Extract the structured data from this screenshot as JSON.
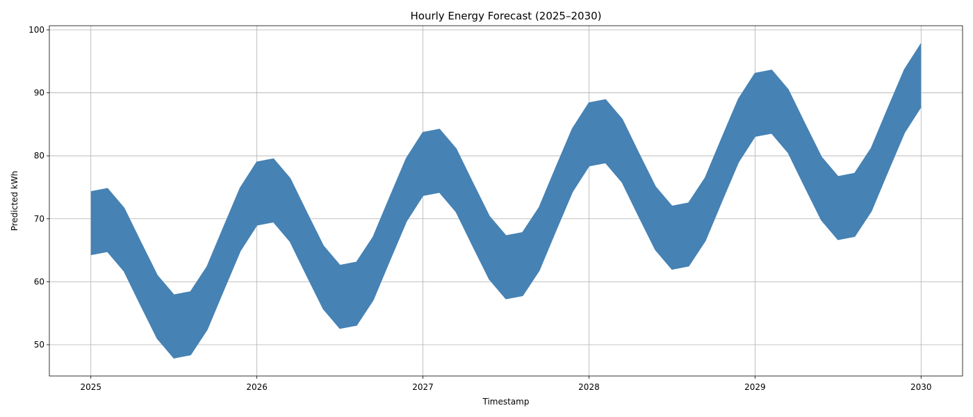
{
  "chart_data": {
    "type": "band",
    "title": "Hourly Energy Forecast (2025–2030)",
    "x_label": "Timestamp",
    "y_label": "Predicted kWh",
    "color": "#4682b4",
    "grid": true,
    "x": [
      2025,
      2025.1,
      2025.2,
      2025.3,
      2025.4,
      2025.5,
      2025.6,
      2025.7,
      2025.8,
      2025.9,
      2026,
      2026.1,
      2026.2,
      2026.3,
      2026.4,
      2026.5,
      2026.6,
      2026.7,
      2026.8,
      2026.9,
      2027,
      2027.1,
      2027.2,
      2027.3,
      2027.4,
      2027.5,
      2027.6,
      2027.7,
      2027.8,
      2027.9,
      2028,
      2028.1,
      2028.2,
      2028.3,
      2028.4,
      2028.5,
      2028.6,
      2028.7,
      2028.8,
      2028.9,
      2029,
      2029.1,
      2029.2,
      2029.3,
      2029.4,
      2029.5,
      2029.6,
      2029.7,
      2029.8,
      2029.9,
      2030
    ],
    "y_upper": [
      74.3,
      74.8,
      71.7,
      66.3,
      61.0,
      57.9,
      58.4,
      62.4,
      68.7,
      74.9,
      79.0,
      79.5,
      76.4,
      71.0,
      65.7,
      62.6,
      63.1,
      67.1,
      73.4,
      79.6,
      83.7,
      84.2,
      81.1,
      75.7,
      70.4,
      67.3,
      67.8,
      71.8,
      78.1,
      84.3,
      88.4,
      88.9,
      85.8,
      80.4,
      75.1,
      72.0,
      72.5,
      76.5,
      82.8,
      89.0,
      93.1,
      93.6,
      90.5,
      85.1,
      79.8,
      76.7,
      77.2,
      81.2,
      87.5,
      93.7,
      97.8
    ],
    "y_lower": [
      64.3,
      64.8,
      61.7,
      56.3,
      51.0,
      47.9,
      48.4,
      52.4,
      58.7,
      64.9,
      69.0,
      69.5,
      66.4,
      61.0,
      55.7,
      52.6,
      53.1,
      57.1,
      63.4,
      69.6,
      73.7,
      74.2,
      71.1,
      65.7,
      60.4,
      57.3,
      57.8,
      61.8,
      68.1,
      74.3,
      78.4,
      78.9,
      75.8,
      70.4,
      65.1,
      62.0,
      62.5,
      66.5,
      72.8,
      79.0,
      83.1,
      83.6,
      80.5,
      75.1,
      69.8,
      66.7,
      67.2,
      71.2,
      77.5,
      83.7,
      87.8
    ],
    "xlim": [
      2024.75,
      2030.25
    ],
    "xticks": [
      2025,
      2026,
      2027,
      2028,
      2029,
      2030
    ],
    "ylim": [
      45.03,
      100.66
    ],
    "yticks": [
      50,
      60,
      70,
      80,
      90,
      100
    ]
  }
}
